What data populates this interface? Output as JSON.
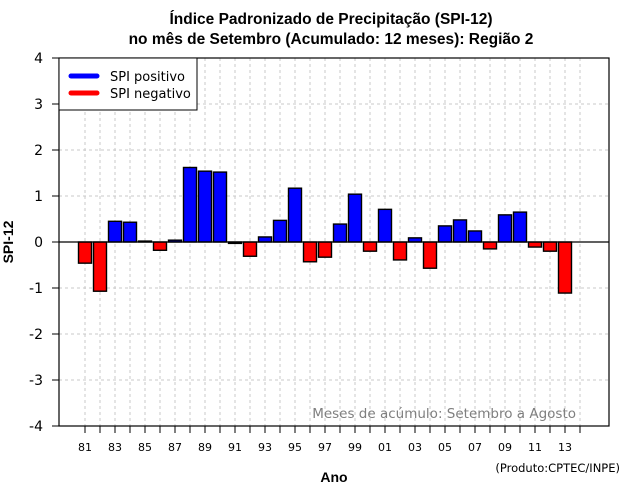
{
  "chart_data": {
    "type": "bar",
    "title": "Índice Padronizado de Precipitação (SPI-12)",
    "subtitle": "no mês de Setembro (Acumulado: 12 meses): Região 2",
    "xlabel": "Ano",
    "ylabel": "SPI-12",
    "ylim": [
      -4,
      4
    ],
    "yticks": [
      -4,
      -3,
      -2,
      -1,
      0,
      1,
      2,
      3,
      4
    ],
    "xtick_labels": [
      "81",
      "83",
      "85",
      "87",
      "89",
      "91",
      "93",
      "95",
      "97",
      "99",
      "01",
      "03",
      "05",
      "07",
      "09",
      "11",
      "13"
    ],
    "grid": true,
    "categories": [
      1981,
      1982,
      1983,
      1984,
      1985,
      1986,
      1987,
      1988,
      1989,
      1990,
      1991,
      1992,
      1993,
      1994,
      1995,
      1996,
      1997,
      1998,
      1999,
      2000,
      2001,
      2002,
      2003,
      2004,
      2005,
      2006,
      2007,
      2008,
      2009,
      2010,
      2011,
      2012,
      2013
    ],
    "values": [
      -0.46,
      -1.07,
      0.45,
      0.43,
      0.02,
      -0.18,
      0.04,
      1.62,
      1.54,
      1.52,
      -0.03,
      -0.31,
      0.11,
      0.47,
      1.17,
      -0.43,
      -0.33,
      0.39,
      1.04,
      -0.2,
      0.71,
      -0.39,
      0.09,
      -0.57,
      0.35,
      0.48,
      0.24,
      -0.15,
      0.59,
      0.65,
      -0.11,
      -0.2,
      -1.11
    ],
    "legend": {
      "placement": "top-left",
      "entries": [
        {
          "label": "SPI positivo",
          "color": "#0000ff"
        },
        {
          "label": "SPI negativo",
          "color": "#ff0000"
        }
      ]
    },
    "annotation": "Meses de acúmulo: Setembro a Agosto",
    "credit": "(Produto:CPTEC/INPE)",
    "colors": {
      "positive": "#0000ff",
      "negative": "#ff0000",
      "grid": "#c8c8c8",
      "annotation": "#7f7f7f"
    }
  }
}
